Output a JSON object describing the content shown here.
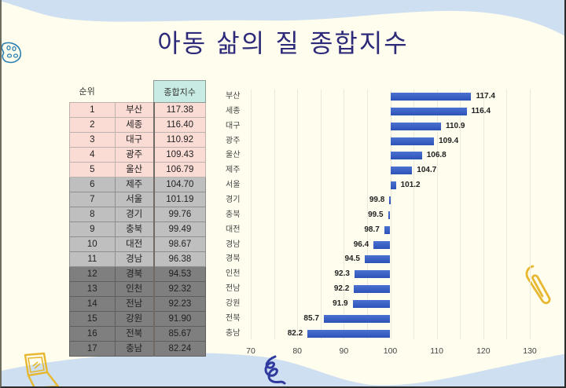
{
  "title": "아동 삶의 질 종합지수",
  "table": {
    "headers": {
      "rank": "순위",
      "score": "종합지수"
    },
    "rows": [
      {
        "rank": "1",
        "region": "부산",
        "score": "117.38",
        "tier": "top"
      },
      {
        "rank": "2",
        "region": "세종",
        "score": "116.40",
        "tier": "top"
      },
      {
        "rank": "3",
        "region": "대구",
        "score": "110.92",
        "tier": "top"
      },
      {
        "rank": "4",
        "region": "광주",
        "score": "109.43",
        "tier": "top"
      },
      {
        "rank": "5",
        "region": "울산",
        "score": "106.79",
        "tier": "top"
      },
      {
        "rank": "6",
        "region": "제주",
        "score": "104.70",
        "tier": "mid"
      },
      {
        "rank": "7",
        "region": "서울",
        "score": "101.19",
        "tier": "mid"
      },
      {
        "rank": "8",
        "region": "경기",
        "score": "99.76",
        "tier": "mid"
      },
      {
        "rank": "9",
        "region": "충북",
        "score": "99.49",
        "tier": "mid"
      },
      {
        "rank": "10",
        "region": "대전",
        "score": "98.67",
        "tier": "mid"
      },
      {
        "rank": "11",
        "region": "경남",
        "score": "96.38",
        "tier": "mid"
      },
      {
        "rank": "12",
        "region": "경북",
        "score": "94.53",
        "tier": "low"
      },
      {
        "rank": "13",
        "region": "인천",
        "score": "92.32",
        "tier": "low"
      },
      {
        "rank": "14",
        "region": "전남",
        "score": "92.23",
        "tier": "low"
      },
      {
        "rank": "15",
        "region": "강원",
        "score": "91.90",
        "tier": "low"
      },
      {
        "rank": "16",
        "region": "전북",
        "score": "85.67",
        "tier": "low"
      },
      {
        "rank": "17",
        "region": "충남",
        "score": "82.24",
        "tier": "low"
      }
    ],
    "colors": {
      "top": "#fbdcd5",
      "mid": "#bfbfbf",
      "low": "#7f7f7f",
      "header": "#c8ece4"
    }
  },
  "chart_data": {
    "type": "bar",
    "orientation": "horizontal",
    "title": "아동 삶의 질 종합지수",
    "xlabel": "",
    "ylabel": "",
    "baseline": 100,
    "categories": [
      "부산",
      "세종",
      "대구",
      "광주",
      "울산",
      "제주",
      "서울",
      "경기",
      "충북",
      "대전",
      "경남",
      "경북",
      "인천",
      "전남",
      "강원",
      "전북",
      "충남"
    ],
    "values": [
      117.4,
      116.4,
      110.9,
      109.4,
      106.8,
      104.7,
      101.2,
      99.8,
      99.5,
      98.7,
      96.4,
      94.5,
      92.3,
      92.2,
      91.9,
      85.7,
      82.2
    ],
    "value_labels": [
      "117.4",
      "116.4",
      "110.9",
      "109.4",
      "106.8",
      "104.7",
      "101.2",
      "99.8",
      "99.5",
      "98.7",
      "96.4",
      "94.5",
      "92.3",
      "92.2",
      "91.9",
      "85.7",
      "82.2"
    ],
    "xlim": [
      70,
      130
    ],
    "x_ticks": [
      "70",
      "80",
      "90",
      "100",
      "110",
      "120",
      "130"
    ],
    "grid": true,
    "legend": null,
    "bar_color": "#3a60c4"
  },
  "decorations": [
    "palette-icon",
    "paperclip-icon",
    "laptop-icon",
    "scribble-icon"
  ]
}
